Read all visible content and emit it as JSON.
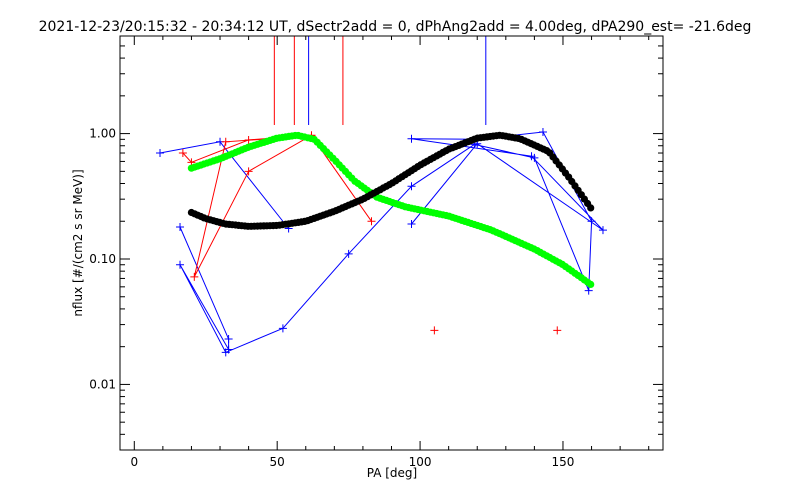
{
  "chart_data": {
    "type": "scatter",
    "title": "2021-12-23/20:15:32 - 20:34:12 UT, dSectr2add = 0, dPhAng2add = 4.00deg, dPA290_est= -21.6deg",
    "xlabel": "PA [deg]",
    "ylabel": "nflux [#/(cm2 s sr MeV)]",
    "xlim": [
      -5,
      185
    ],
    "ylim": [
      0.003,
      6.0
    ],
    "yscale": "log",
    "grid": false,
    "x_ticks": [
      0,
      50,
      100,
      150
    ],
    "x_tick_labels": [
      "0",
      "50",
      "100",
      "150"
    ],
    "y_ticks": [
      0.01,
      0.1,
      1.0
    ],
    "y_tick_labels": [
      "0.01",
      "0.10",
      "1.00"
    ],
    "series": [
      {
        "color": "#0000ff",
        "marker": "plus",
        "segments": [
          [
            [
              9,
              0.7
            ],
            [
              30,
              0.86
            ],
            [
              54,
              0.175
            ]
          ],
          [
            [
              16,
              0.18
            ],
            [
              33,
              0.023
            ],
            [
              33,
              0.019
            ],
            [
              16,
              0.09
            ],
            [
              32,
              0.018
            ],
            [
              52,
              0.028
            ],
            [
              75,
              0.11
            ],
            [
              97,
              0.38
            ],
            [
              119,
              0.82
            ],
            [
              140,
              0.64
            ],
            [
              159,
              0.056
            ],
            [
              160,
              0.2
            ],
            [
              143,
              1.03
            ],
            [
              120,
              0.9
            ],
            [
              97,
              0.91
            ],
            [
              139,
              0.66
            ],
            [
              164,
              0.17
            ],
            [
              120,
              0.83
            ],
            [
              97,
              0.19
            ]
          ]
        ]
      },
      {
        "color": "#ff0000",
        "marker": "plus",
        "segments": [
          [
            [
              17,
              0.7
            ],
            [
              20,
              0.59
            ],
            [
              40,
              0.89
            ],
            [
              62,
              0.97
            ],
            [
              40,
              0.5
            ],
            [
              21,
              0.072
            ],
            [
              32,
              0.86
            ],
            [
              62,
              0.96
            ],
            [
              83,
              0.2
            ]
          ],
          [
            [
              105,
              0.027
            ]
          ],
          [
            [
              148,
              0.027
            ]
          ]
        ]
      },
      {
        "color": "#00ff00",
        "marker": "dot",
        "x_start": 20,
        "x_end": 160,
        "points": [
          [
            20,
            0.53
          ],
          [
            30,
            0.63
          ],
          [
            40,
            0.78
          ],
          [
            50,
            0.92
          ],
          [
            57,
            0.97
          ],
          [
            63,
            0.9
          ],
          [
            70,
            0.62
          ],
          [
            77,
            0.42
          ],
          [
            85,
            0.31
          ],
          [
            95,
            0.26
          ],
          [
            110,
            0.22
          ],
          [
            125,
            0.17
          ],
          [
            140,
            0.12
          ],
          [
            150,
            0.09
          ],
          [
            160,
            0.062
          ]
        ]
      },
      {
        "color": "#000000",
        "marker": "dot",
        "x_start": 20,
        "x_end": 160,
        "points": [
          [
            20,
            0.235
          ],
          [
            25,
            0.21
          ],
          [
            32,
            0.19
          ],
          [
            40,
            0.182
          ],
          [
            50,
            0.185
          ],
          [
            60,
            0.2
          ],
          [
            70,
            0.24
          ],
          [
            80,
            0.3
          ],
          [
            90,
            0.4
          ],
          [
            100,
            0.56
          ],
          [
            110,
            0.75
          ],
          [
            120,
            0.92
          ],
          [
            128,
            0.97
          ],
          [
            135,
            0.91
          ],
          [
            145,
            0.72
          ],
          [
            152,
            0.45
          ],
          [
            160,
            0.25
          ]
        ]
      }
    ],
    "vertical_markers": [
      {
        "x": 49,
        "color": "#ff0000"
      },
      {
        "x": 56,
        "color": "#ff0000"
      },
      {
        "x": 61,
        "color": "#0000ff"
      },
      {
        "x": 73,
        "color": "#ff0000"
      },
      {
        "x": 123,
        "color": "#0000ff"
      }
    ]
  }
}
